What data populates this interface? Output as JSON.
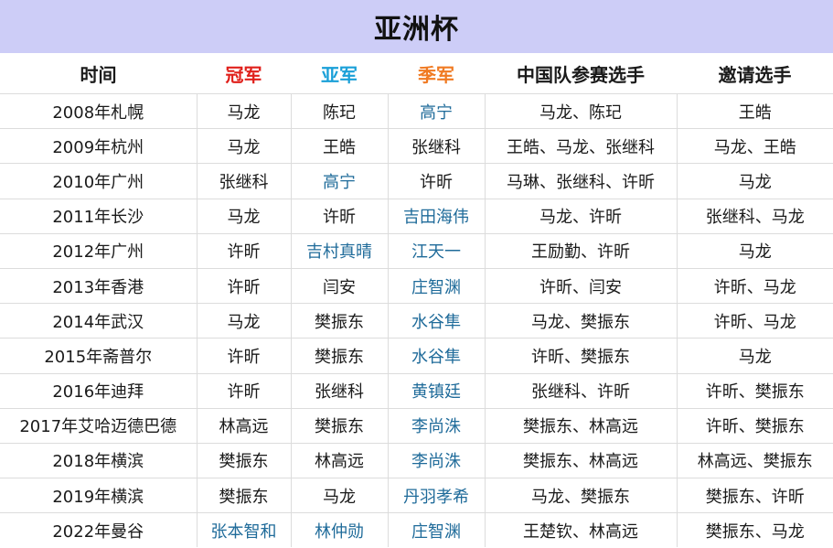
{
  "title": "亚洲杯",
  "colors": {
    "title_bg": "#cdcdf7",
    "champion": "#e0201b",
    "runner_up": "#1aa0d8",
    "third": "#f07a22",
    "foreign_player": "#1f6b9a"
  },
  "headers": [
    "时间",
    "冠军",
    "亚军",
    "季军",
    "中国队参赛选手",
    "邀请选手"
  ],
  "rows": [
    {
      "cells": [
        "2008年札幌",
        "马龙",
        "陈玘",
        "高宁",
        "马龙、陈玘",
        "王皓"
      ],
      "foreign": [
        false,
        false,
        false,
        true,
        false,
        false
      ]
    },
    {
      "cells": [
        "2009年杭州",
        "马龙",
        "王皓",
        "张继科",
        "王皓、马龙、张继科",
        "马龙、王皓"
      ],
      "foreign": [
        false,
        false,
        false,
        false,
        false,
        false
      ]
    },
    {
      "cells": [
        "2010年广州",
        "张继科",
        "高宁",
        "许昕",
        "马琳、张继科、许昕",
        "马龙"
      ],
      "foreign": [
        false,
        false,
        true,
        false,
        false,
        false
      ]
    },
    {
      "cells": [
        "2011年长沙",
        "马龙",
        "许昕",
        "吉田海伟",
        "马龙、许昕",
        "张继科、马龙"
      ],
      "foreign": [
        false,
        false,
        false,
        true,
        false,
        false
      ]
    },
    {
      "cells": [
        "2012年广州",
        "许昕",
        "吉村真晴",
        "江天一",
        "王励勤、许昕",
        "马龙"
      ],
      "foreign": [
        false,
        false,
        true,
        true,
        false,
        false
      ]
    },
    {
      "cells": [
        "2013年香港",
        "许昕",
        "闫安",
        "庄智渊",
        "许昕、闫安",
        "许昕、马龙"
      ],
      "foreign": [
        false,
        false,
        false,
        true,
        false,
        false
      ]
    },
    {
      "cells": [
        "2014年武汉",
        "马龙",
        "樊振东",
        "水谷隼",
        "马龙、樊振东",
        "许昕、马龙"
      ],
      "foreign": [
        false,
        false,
        false,
        true,
        false,
        false
      ]
    },
    {
      "cells": [
        "2015年斋普尔",
        "许昕",
        "樊振东",
        "水谷隼",
        "许昕、樊振东",
        "马龙"
      ],
      "foreign": [
        false,
        false,
        false,
        true,
        false,
        false
      ]
    },
    {
      "cells": [
        "2016年迪拜",
        "许昕",
        "张继科",
        "黄镇廷",
        "张继科、许昕",
        "许昕、樊振东"
      ],
      "foreign": [
        false,
        false,
        false,
        true,
        false,
        false
      ]
    },
    {
      "cells": [
        "2017年艾哈迈德巴德",
        "林高远",
        "樊振东",
        "李尚洙",
        "樊振东、林高远",
        "许昕、樊振东"
      ],
      "foreign": [
        false,
        false,
        false,
        true,
        false,
        false
      ]
    },
    {
      "cells": [
        "2018年横滨",
        "樊振东",
        "林高远",
        "李尚洙",
        "樊振东、林高远",
        "林高远、樊振东"
      ],
      "foreign": [
        false,
        false,
        false,
        true,
        false,
        false
      ]
    },
    {
      "cells": [
        "2019年横滨",
        "樊振东",
        "马龙",
        "丹羽孝希",
        "马龙、樊振东",
        "樊振东、许昕"
      ],
      "foreign": [
        false,
        false,
        false,
        true,
        false,
        false
      ]
    },
    {
      "cells": [
        "2022年曼谷",
        "张本智和",
        "林仲勋",
        "庄智渊",
        "王楚钦、林高远",
        "樊振东、马龙"
      ],
      "foreign": [
        false,
        true,
        true,
        true,
        false,
        false
      ]
    }
  ]
}
